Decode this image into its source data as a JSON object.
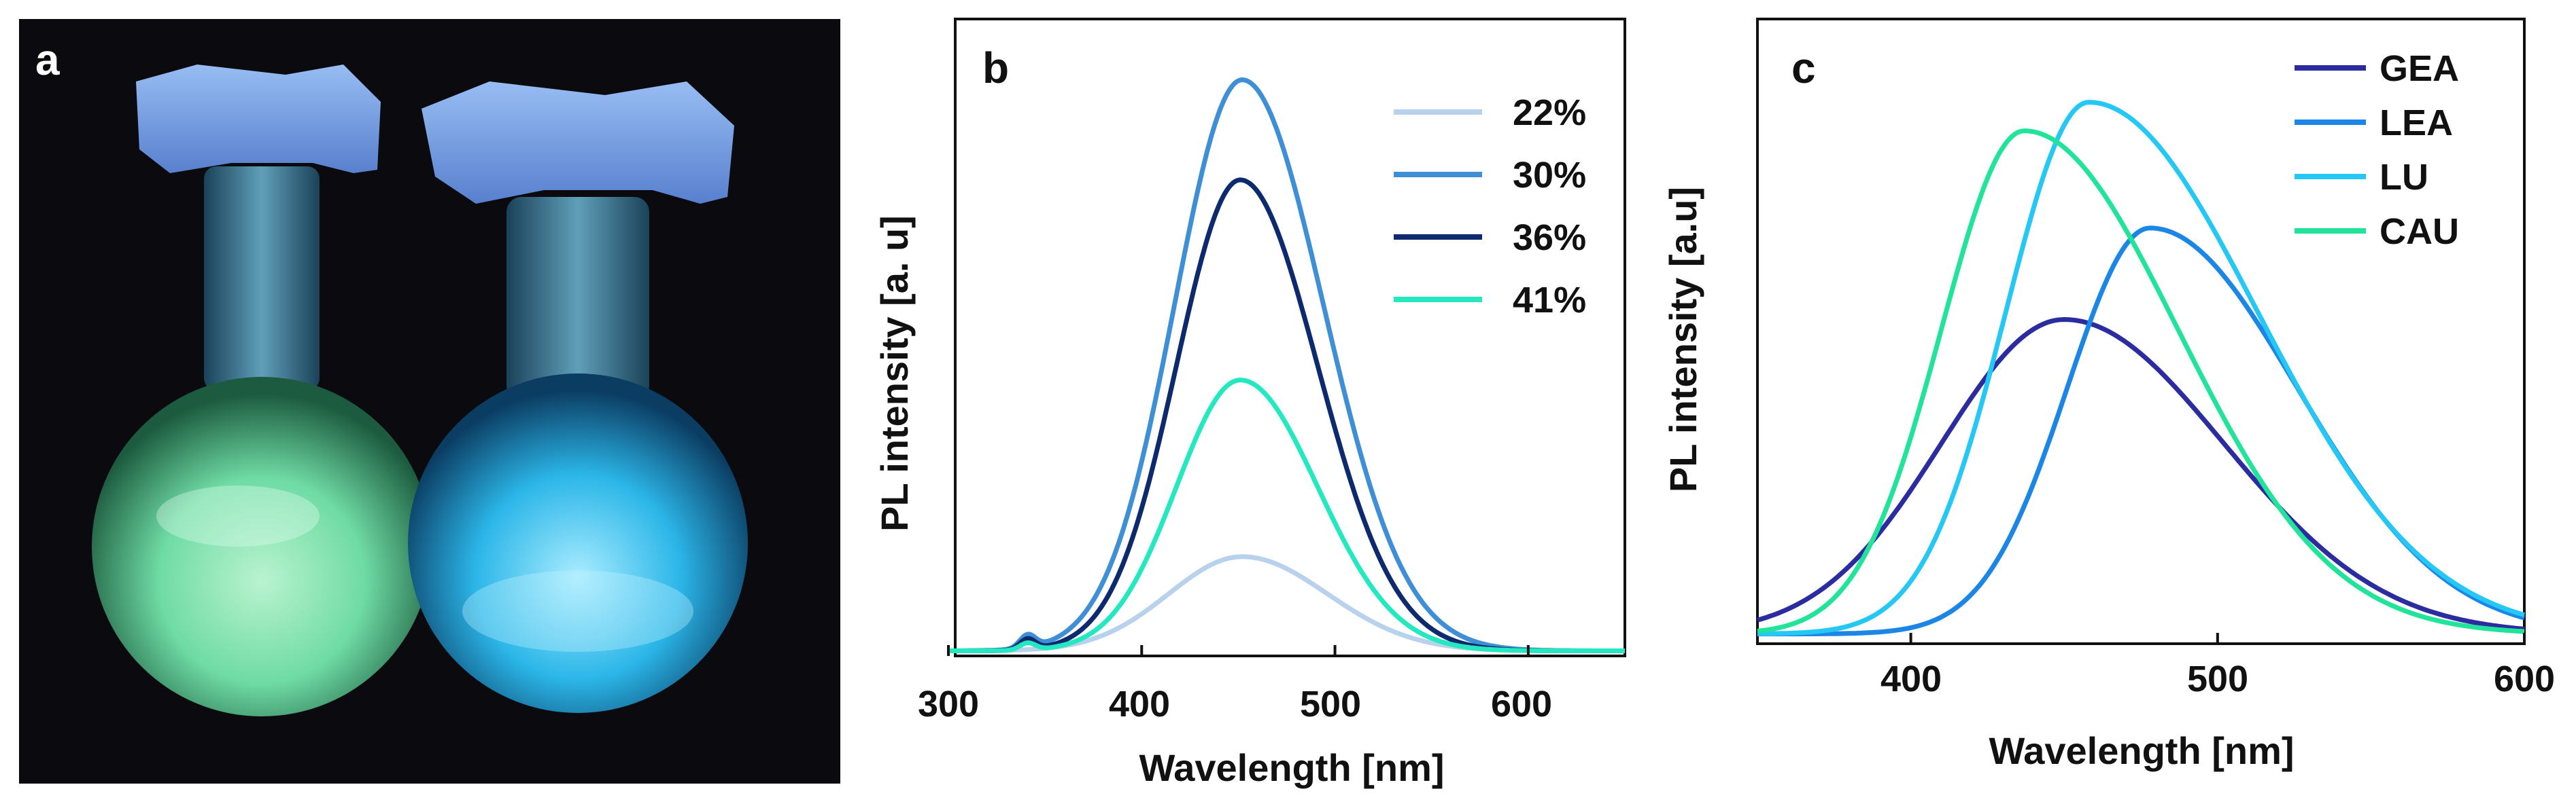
{
  "panels": {
    "a": {
      "label": "a",
      "subject": "two round-bottom flasks under UV light"
    },
    "b": {
      "label": "b"
    },
    "c": {
      "label": "c"
    }
  },
  "colors": {
    "c22": "#b8d2ee",
    "c30": "#3f8fd6",
    "c36": "#0e2a6e",
    "c41": "#24e8c0",
    "gea": "#2a2ca0",
    "lea": "#1b86e6",
    "lu": "#25c7f5",
    "cau": "#21e39a",
    "photo_bg": "#0b0b0f",
    "flask_left_glow": "#7fe6b0",
    "flask_right_glow": "#33c6f0"
  },
  "chart_data": [
    {
      "type": "line",
      "panel": "b",
      "title": "",
      "xlabel": "Wavelength [nm]",
      "ylabel": "PL  intensity [a. u]",
      "xlim": [
        300,
        650
      ],
      "ylim": [
        0,
        1.0
      ],
      "xticks": [
        300,
        400,
        500,
        600
      ],
      "yticks_shown": false,
      "legend_position": "top-right",
      "series": [
        {
          "name": "22%",
          "color_key": "c22",
          "peak_x": 452,
          "peak_y": 0.16,
          "sigma_left": 38,
          "sigma_right": 44,
          "bump": 0.0
        },
        {
          "name": "30%",
          "color_key": "c30",
          "peak_x": 452,
          "peak_y": 0.97,
          "sigma_left": 35,
          "sigma_right": 42,
          "bump": 0.022
        },
        {
          "name": "36%",
          "color_key": "c36",
          "peak_x": 451,
          "peak_y": 0.8,
          "sigma_left": 33,
          "sigma_right": 40,
          "bump": 0.018
        },
        {
          "name": "41%",
          "color_key": "c41",
          "peak_x": 451,
          "peak_y": 0.46,
          "sigma_left": 33,
          "sigma_right": 40,
          "bump": 0.012
        }
      ]
    },
    {
      "type": "line",
      "panel": "c",
      "title": "",
      "xlabel": "Wavelength [nm]",
      "ylabel": "PL intensity [a.u]",
      "xlim": [
        350,
        600
      ],
      "ylim": [
        0,
        1.0
      ],
      "xticks": [
        400,
        500,
        600
      ],
      "yticks_shown": false,
      "legend_position": "top-right",
      "series": [
        {
          "name": "GEA",
          "color_key": "gea",
          "peak_x": 450,
          "peak_y": 0.55,
          "sigma_left": 40,
          "sigma_right": 52
        },
        {
          "name": "LEA",
          "color_key": "lea",
          "peak_x": 478,
          "peak_y": 0.71,
          "sigma_left": 27,
          "sigma_right": 48
        },
        {
          "name": "LU",
          "color_key": "lu",
          "peak_x": 458,
          "peak_y": 0.93,
          "sigma_left": 27,
          "sigma_right": 55
        },
        {
          "name": "CAU",
          "color_key": "cau",
          "peak_x": 437,
          "peak_y": 0.88,
          "sigma_left": 27,
          "sigma_right": 50
        }
      ]
    }
  ]
}
